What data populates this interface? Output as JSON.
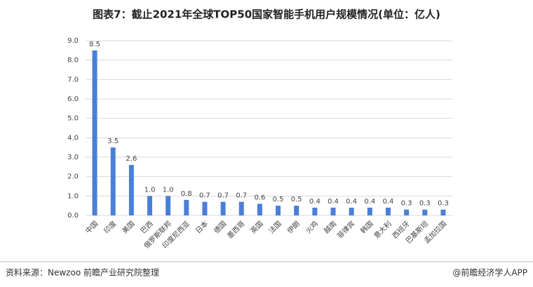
{
  "chart_data": {
    "type": "bar",
    "title": "图表7：截止2021年全球TOP50国家智能手机用户规模情况(单位：亿人)",
    "categories": [
      "中国",
      "印度",
      "美国",
      "巴西",
      "俄罗斯联邦",
      "印度尼西亚",
      "日本",
      "德国",
      "墨西哥",
      "英国",
      "法国",
      "伊朗",
      "火鸡",
      "越南",
      "菲律宾",
      "韩国",
      "意大利",
      "西班牙",
      "巴基斯坦",
      "孟加拉国"
    ],
    "values": [
      8.5,
      3.5,
      2.6,
      1.0,
      1.0,
      0.8,
      0.7,
      0.7,
      0.7,
      0.6,
      0.5,
      0.5,
      0.4,
      0.4,
      0.4,
      0.4,
      0.4,
      0.3,
      0.3,
      0.3
    ],
    "value_labels": [
      "8.5",
      "3.5",
      "2.6",
      "1.0",
      "1.0",
      "0.8",
      "0.7",
      "0.7",
      "0.7",
      "0.6",
      "0.5",
      "0.5",
      "0.4",
      "0.4",
      "0.4",
      "0.4",
      "0.4",
      "0.3",
      "0.3",
      "0.3"
    ],
    "color": "#4a7fd8",
    "ylim": [
      0,
      9
    ],
    "yticks": [
      {
        "value": 0,
        "label": "0.0"
      },
      {
        "value": 1,
        "label": "1.0"
      },
      {
        "value": 2,
        "label": "2.0"
      },
      {
        "value": 3,
        "label": "3.0"
      },
      {
        "value": 4,
        "label": "4.0"
      },
      {
        "value": 5,
        "label": "5.0"
      },
      {
        "value": 6,
        "label": "6.0"
      },
      {
        "value": 7,
        "label": "7.0"
      },
      {
        "value": 8,
        "label": "8.0"
      },
      {
        "value": 9,
        "label": "9.0"
      }
    ],
    "grid": true
  },
  "footer": {
    "source": "资料来源：Newzoo 前瞻产业研究院整理",
    "credit": "@前瞻经济学人APP"
  }
}
